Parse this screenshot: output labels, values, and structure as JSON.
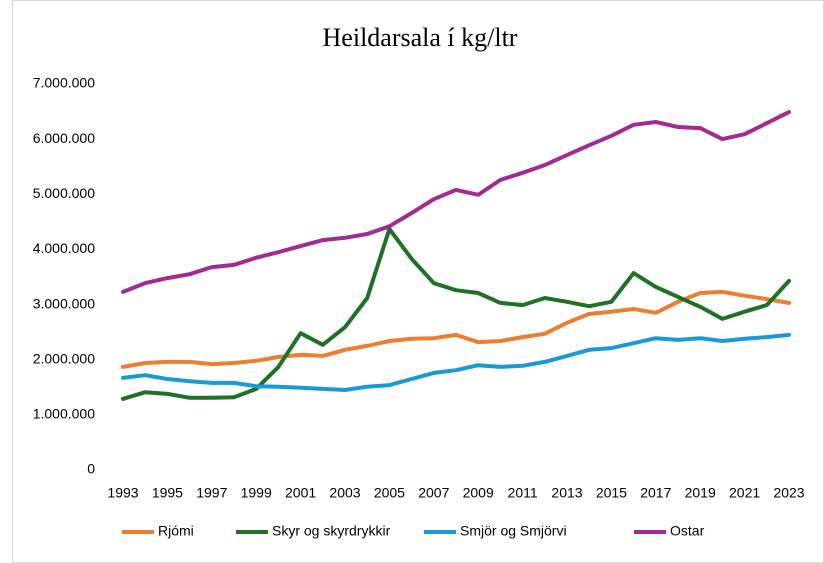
{
  "chart_data": {
    "type": "line",
    "title": "Heildarsala í kg/ltr",
    "x": [
      1993,
      1994,
      1995,
      1996,
      1997,
      1998,
      1999,
      2000,
      2001,
      2002,
      2003,
      2004,
      2005,
      2006,
      2007,
      2008,
      2009,
      2010,
      2011,
      2012,
      2013,
      2014,
      2015,
      2016,
      2017,
      2018,
      2019,
      2020,
      2021,
      2022,
      2023
    ],
    "xlim": [
      1993,
      2023
    ],
    "xticks": [
      1993,
      1995,
      1997,
      1999,
      2001,
      2003,
      2005,
      2007,
      2009,
      2011,
      2013,
      2015,
      2017,
      2019,
      2021,
      2023
    ],
    "ylim": [
      0,
      7000000
    ],
    "yticks": [
      0,
      {
        "value": 1000000,
        "label": "1.000.000"
      },
      {
        "value": 2000000,
        "label": "2.000.000"
      },
      {
        "value": 3000000,
        "label": "3.000.000"
      },
      {
        "value": 4000000,
        "label": "4.000.000"
      },
      {
        "value": 5000000,
        "label": "5.000.000"
      },
      {
        "value": 6000000,
        "label": "6.000.000"
      },
      {
        "value": 7000000,
        "label": "7.000.000"
      }
    ],
    "grid": false,
    "legend": "bottom",
    "series": [
      {
        "name": "Rjómi",
        "color": "#ed7d31",
        "values": [
          1870000,
          1940000,
          1960000,
          1960000,
          1920000,
          1940000,
          1980000,
          2050000,
          2090000,
          2070000,
          2180000,
          2250000,
          2340000,
          2380000,
          2390000,
          2450000,
          2320000,
          2340000,
          2410000,
          2470000,
          2670000,
          2830000,
          2870000,
          2920000,
          2850000,
          3050000,
          3210000,
          3230000,
          3160000,
          3100000,
          3030000
        ]
      },
      {
        "name": "Skyr og skyrdrykkir",
        "color": "#1e7125",
        "values": [
          1290000,
          1410000,
          1380000,
          1310000,
          1310000,
          1320000,
          1470000,
          1870000,
          2480000,
          2270000,
          2590000,
          3120000,
          4370000,
          3830000,
          3390000,
          3260000,
          3210000,
          3030000,
          2990000,
          3120000,
          3050000,
          2970000,
          3050000,
          3570000,
          3320000,
          3140000,
          2960000,
          2740000,
          2870000,
          2990000,
          3430000
        ]
      },
      {
        "name": "Smjör og Smjörvi",
        "color": "#199ad6",
        "values": [
          1670000,
          1720000,
          1650000,
          1610000,
          1580000,
          1580000,
          1520000,
          1510000,
          1490000,
          1470000,
          1450000,
          1510000,
          1540000,
          1650000,
          1760000,
          1810000,
          1900000,
          1870000,
          1890000,
          1960000,
          2070000,
          2180000,
          2210000,
          2300000,
          2390000,
          2360000,
          2390000,
          2340000,
          2380000,
          2410000,
          2450000
        ]
      },
      {
        "name": "Ostar",
        "color": "#a02b93",
        "values": [
          3230000,
          3390000,
          3480000,
          3550000,
          3680000,
          3720000,
          3850000,
          3950000,
          4060000,
          4170000,
          4210000,
          4280000,
          4420000,
          4660000,
          4910000,
          5080000,
          4990000,
          5260000,
          5390000,
          5530000,
          5710000,
          5890000,
          6060000,
          6260000,
          6310000,
          6220000,
          6200000,
          6000000,
          6090000,
          6290000,
          6490000
        ]
      }
    ]
  }
}
